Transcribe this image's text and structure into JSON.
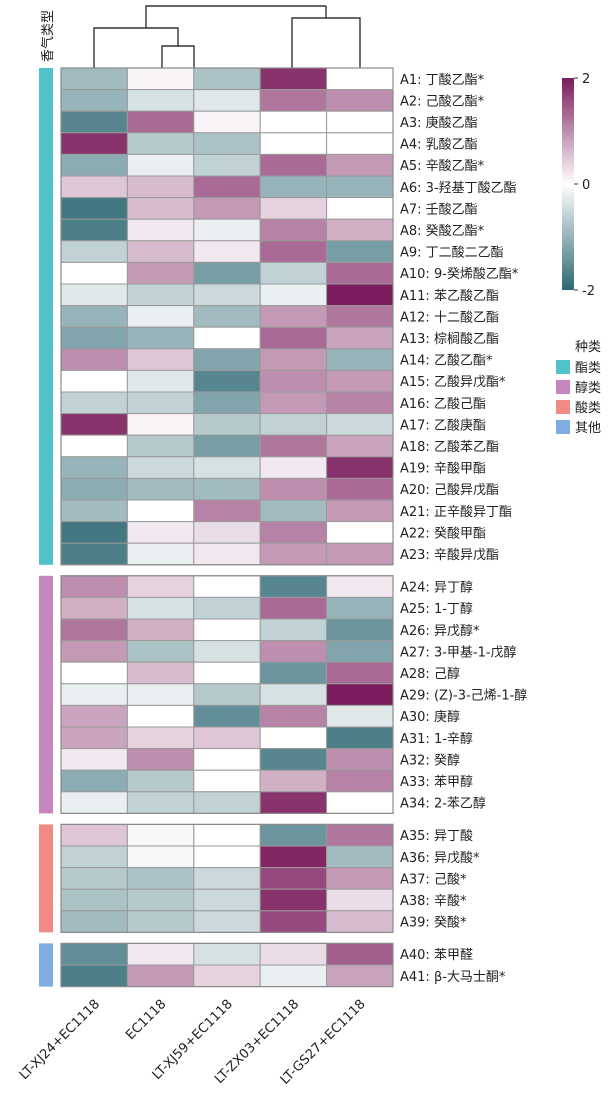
{
  "chart_data": {
    "type": "heatmap",
    "title": "",
    "side_label": "香气类型",
    "columns": [
      "LT-XJ24+EC1118",
      "EC1118",
      "LT-XJ59+EC1118",
      "LT-ZX03+EC1118",
      "LT-GS27+EC1118"
    ],
    "rows": [
      "A1: 丁酸乙酯*",
      "A2: 己酸乙酯*",
      "A3: 庚酸乙酯",
      "A4: 乳酸乙酯",
      "A5: 辛酸乙酯*",
      "A6: 3-羟基丁酸乙酯",
      "A7: 壬酸乙酯",
      "A8: 癸酸乙酯*",
      "A9: 丁二酸二乙酯",
      "A10: 9-癸烯酸乙酯*",
      "A11: 苯乙酸乙酯",
      "A12: 十二酸乙酯",
      "A13: 棕榈酸乙酯",
      "A14: 乙酸乙酯*",
      "A15: 乙酸异戊酯*",
      "A16: 乙酸己酯",
      "A17: 乙酸庚酯",
      "A18: 乙酸苯乙酯",
      "A19: 辛酸甲酯",
      "A20: 己酸异戊酯",
      "A21: 正辛酸异丁酯",
      "A22: 癸酸甲酯",
      "A23: 辛酸异戊酯",
      "A24: 异丁醇",
      "A25: 1-丁醇",
      "A26: 异戊醇*",
      "A27: 3-甲基-1-戊醇",
      "A28: 己醇",
      "A29: (Z)-3-己烯-1-醇",
      "A30: 庚醇",
      "A31: 1-辛醇",
      "A32: 癸醇",
      "A33: 苯甲醇",
      "A34: 2-苯乙醇",
      "A35: 异丁酸",
      "A36: 异戊酸*",
      "A37: 己酸*",
      "A38: 辛酸*",
      "A39: 癸酸*",
      "A40: 苯甲醛",
      "A41: β-大马士酮*"
    ],
    "groups": [
      {
        "name": "酯类",
        "color": "#4fc3c9",
        "count": 23
      },
      {
        "name": "醇类",
        "color": "#c586c0",
        "count": 11
      },
      {
        "name": "酸类",
        "color": "#f08a84",
        "count": 5
      },
      {
        "name": "其他",
        "color": "#7eaee0",
        "count": 2
      }
    ],
    "values": [
      [
        -0.9,
        0.1,
        -0.8,
        1.8,
        0.0
      ],
      [
        -1.0,
        -0.4,
        -0.3,
        1.2,
        1.0
      ],
      [
        -1.6,
        1.3,
        0.1,
        0.0,
        0.0
      ],
      [
        1.8,
        -0.7,
        -0.8,
        0.0,
        0.0
      ],
      [
        -1.1,
        -0.2,
        -0.6,
        1.3,
        0.9
      ],
      [
        0.5,
        0.6,
        1.3,
        -1.0,
        -1.0
      ],
      [
        -1.8,
        0.6,
        0.9,
        0.4,
        0.0
      ],
      [
        -1.7,
        0.2,
        -0.2,
        1.1,
        0.7
      ],
      [
        -0.6,
        0.6,
        0.2,
        1.3,
        -1.3
      ],
      [
        0.0,
        0.9,
        -1.3,
        -0.6,
        1.3
      ],
      [
        -0.3,
        -0.6,
        -0.5,
        -0.2,
        2.0
      ],
      [
        -1.0,
        -0.2,
        -0.9,
        0.9,
        1.2
      ],
      [
        -1.2,
        -1.0,
        0.0,
        1.3,
        0.8
      ],
      [
        1.0,
        0.5,
        -1.2,
        0.9,
        -1.0
      ],
      [
        0.0,
        -0.3,
        -1.6,
        1.0,
        0.9
      ],
      [
        -0.6,
        -0.6,
        -1.2,
        0.9,
        1.1
      ],
      [
        1.8,
        0.1,
        -0.7,
        -0.6,
        -0.5
      ],
      [
        0.0,
        -0.7,
        -1.3,
        1.2,
        0.8
      ],
      [
        -1.0,
        -0.5,
        -0.4,
        0.2,
        1.8
      ],
      [
        -1.1,
        -0.9,
        -0.9,
        1.0,
        1.3
      ],
      [
        -0.9,
        0.0,
        1.1,
        -0.9,
        0.9
      ],
      [
        -1.8,
        0.2,
        0.3,
        1.1,
        0.0
      ],
      [
        -1.7,
        -0.2,
        0.2,
        0.9,
        0.9
      ],
      [
        1.0,
        0.4,
        0.0,
        -1.6,
        0.2
      ],
      [
        0.7,
        -0.4,
        -0.6,
        1.3,
        -1.0
      ],
      [
        1.2,
        0.7,
        0.0,
        -0.6,
        -1.4
      ],
      [
        0.9,
        -0.8,
        -0.4,
        1.0,
        -1.2
      ],
      [
        0.0,
        0.6,
        0.0,
        -1.4,
        1.3
      ],
      [
        -0.2,
        -0.2,
        -0.7,
        -0.4,
        2.0
      ],
      [
        0.8,
        0.0,
        -1.5,
        1.1,
        -0.3
      ],
      [
        0.8,
        0.4,
        0.5,
        0.0,
        -1.7
      ],
      [
        0.2,
        1.0,
        0.0,
        -1.6,
        1.0
      ],
      [
        -1.1,
        -0.7,
        0.0,
        0.7,
        1.1
      ],
      [
        -0.2,
        -0.6,
        -0.6,
        1.8,
        0.0
      ],
      [
        0.5,
        -0.1,
        0.0,
        -1.4,
        1.2
      ],
      [
        -0.6,
        -0.1,
        0.0,
        1.9,
        -0.9
      ],
      [
        -0.7,
        -0.8,
        -0.5,
        1.6,
        0.9
      ],
      [
        -0.8,
        -0.7,
        -0.5,
        1.8,
        0.3
      ],
      [
        -0.9,
        -0.7,
        -0.5,
        1.6,
        0.6
      ],
      [
        -1.5,
        0.2,
        -0.4,
        0.3,
        1.4
      ],
      [
        -1.7,
        0.9,
        0.4,
        -0.2,
        0.8
      ]
    ],
    "color_scale": {
      "min": -2,
      "mid": 0,
      "max": 2,
      "low_color": "#2e6874",
      "mid_color": "#ffffff",
      "high_color": "#7b1c5c"
    },
    "colorbar_ticks": [
      "2",
      "0",
      "-2"
    ],
    "legend_title": "种类",
    "legend_items": [
      "酯类",
      "醇类",
      "酸类",
      "其他"
    ]
  }
}
